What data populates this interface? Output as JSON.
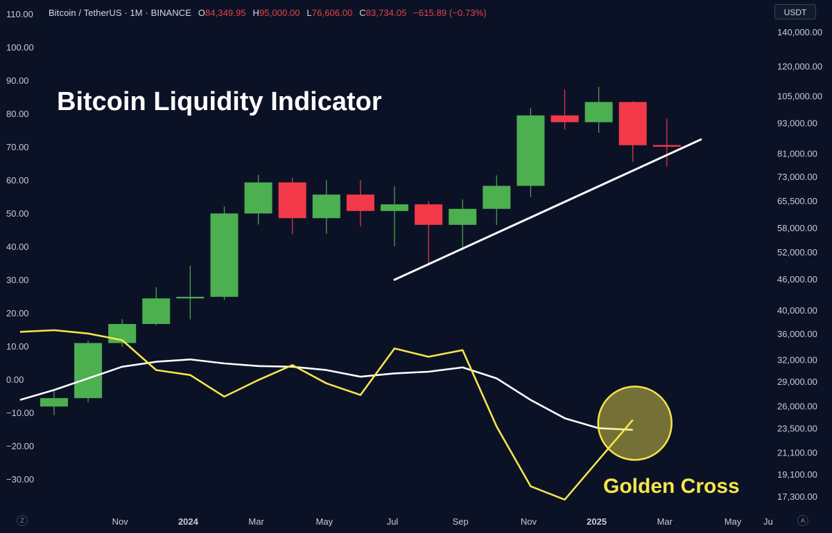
{
  "header": {
    "symbol": "Bitcoin / TetherUS · 1M · BINANCE",
    "o_label": "O",
    "o_value": "84,349.95",
    "h_label": "H",
    "h_value": "95,000.00",
    "l_label": "L",
    "l_value": "76,606.00",
    "c_label": "C",
    "c_value": "83,734.05",
    "change": "−615.89 (−0.73%)"
  },
  "currency_button": "USDT",
  "corner_left": "Z",
  "corner_right": "A",
  "colors": {
    "background": "#0c1226",
    "bullish": "#4caf50",
    "bearish": "#f2394a",
    "liquidity_line": "#f6e64b",
    "signal_line": "#ffffff",
    "trendline": "#ffffff",
    "axis_text": "#c9ccd4"
  },
  "chart_data": {
    "type": "candlestick",
    "title": "Bitcoin Liquidity Indicator",
    "annotation": "Golden Cross",
    "left_axis": {
      "ticks": [
        "110.00",
        "100.00",
        "90.00",
        "80.00",
        "70.00",
        "60.00",
        "50.00",
        "40.00",
        "30.00",
        "20.00",
        "10.00",
        "0.00",
        "−10.00",
        "−20.00",
        "−30.00"
      ],
      "range": [
        -36,
        112
      ]
    },
    "right_axis": {
      "scale": "log",
      "ticks": [
        "140,000.00",
        "120,000.00",
        "105,000.00",
        "93,000.00",
        "81,000.00",
        "73,000.00",
        "65,500.00",
        "58,000.00",
        "52,000.00",
        "46,000.00",
        "40,000.00",
        "36,000.00",
        "32,000.00",
        "29,000.00",
        "26,000.00",
        "23,500.00",
        "21,100.00",
        "19,100.00",
        "17,300.00"
      ]
    },
    "x_axis": {
      "ticks": [
        "Nov",
        "2024",
        "Mar",
        "May",
        "Jul",
        "Sep",
        "Nov",
        "2025",
        "Mar",
        "May",
        "Ju"
      ],
      "bold_ticks": [
        "2024",
        "2025"
      ]
    },
    "candles": [
      {
        "month": "2023-09",
        "open": 26000,
        "high": 28000,
        "low": 25000,
        "close": 27000
      },
      {
        "month": "2023-10",
        "open": 27000,
        "high": 35000,
        "low": 26500,
        "close": 34600
      },
      {
        "month": "2023-11",
        "open": 34600,
        "high": 38500,
        "low": 34000,
        "close": 37700
      },
      {
        "month": "2023-12",
        "open": 37700,
        "high": 44500,
        "low": 37500,
        "close": 42300
      },
      {
        "month": "2024-01",
        "open": 42300,
        "high": 49000,
        "low": 38500,
        "close": 42600
      },
      {
        "month": "2024-02",
        "open": 42600,
        "high": 64000,
        "low": 42000,
        "close": 62000
      },
      {
        "month": "2024-03",
        "open": 62000,
        "high": 73800,
        "low": 59000,
        "close": 71300
      },
      {
        "month": "2024-04",
        "open": 71300,
        "high": 72800,
        "low": 56500,
        "close": 60700
      },
      {
        "month": "2024-05",
        "open": 60700,
        "high": 72000,
        "low": 56600,
        "close": 67500
      },
      {
        "month": "2024-06",
        "open": 67500,
        "high": 72000,
        "low": 58500,
        "close": 62700
      },
      {
        "month": "2024-07",
        "open": 62700,
        "high": 70000,
        "low": 53500,
        "close": 64600
      },
      {
        "month": "2024-08",
        "open": 64600,
        "high": 65500,
        "low": 49000,
        "close": 58900
      },
      {
        "month": "2024-09",
        "open": 58900,
        "high": 66000,
        "low": 52500,
        "close": 63300
      },
      {
        "month": "2024-10",
        "open": 63300,
        "high": 73600,
        "low": 58900,
        "close": 70200
      },
      {
        "month": "2024-11",
        "open": 70200,
        "high": 99600,
        "low": 66800,
        "close": 96400
      },
      {
        "month": "2024-12",
        "open": 96400,
        "high": 108300,
        "low": 90500,
        "close": 93500
      },
      {
        "month": "2025-01",
        "open": 93500,
        "high": 109600,
        "low": 89200,
        "close": 102400
      },
      {
        "month": "2025-02",
        "open": 102400,
        "high": 102700,
        "low": 78300,
        "close": 84300
      },
      {
        "month": "2025-03",
        "open": 84350,
        "high": 95000,
        "low": 76606,
        "close": 83734
      }
    ],
    "series": [
      {
        "values": [
          {
            "month": "2023-08",
            "y": 14.5
          },
          {
            "month": "2023-09",
            "y": 15
          },
          {
            "month": "2023-10",
            "y": 14
          },
          {
            "month": "2023-11",
            "y": 12
          },
          {
            "month": "2023-12",
            "y": 3
          },
          {
            "month": "2024-01",
            "y": 1.5
          },
          {
            "month": "2024-02",
            "y": -5
          },
          {
            "month": "2024-03",
            "y": 0
          },
          {
            "month": "2024-04",
            "y": 4.5
          },
          {
            "month": "2024-05",
            "y": -1
          },
          {
            "month": "2024-06",
            "y": -4.5
          },
          {
            "month": "2024-07",
            "y": 9.5
          },
          {
            "month": "2024-08",
            "y": 7
          },
          {
            "month": "2024-09",
            "y": 9
          },
          {
            "month": "2024-10",
            "y": -14
          },
          {
            "month": "2024-11",
            "y": -32
          },
          {
            "month": "2024-12",
            "y": -36
          },
          {
            "month": "2025-01",
            "y": -24
          },
          {
            "month": "2025-02",
            "y": -12
          }
        ]
      },
      {
        "values": [
          {
            "month": "2023-08",
            "y": -6
          },
          {
            "month": "2023-09",
            "y": -3
          },
          {
            "month": "2023-10",
            "y": 0.5
          },
          {
            "month": "2023-11",
            "y": 4
          },
          {
            "month": "2023-12",
            "y": 5.5
          },
          {
            "month": "2024-01",
            "y": 6.2
          },
          {
            "month": "2024-02",
            "y": 5
          },
          {
            "month": "2024-03",
            "y": 4.2
          },
          {
            "month": "2024-04",
            "y": 4
          },
          {
            "month": "2024-05",
            "y": 3
          },
          {
            "month": "2024-06",
            "y": 1
          },
          {
            "month": "2024-07",
            "y": 2
          },
          {
            "month": "2024-08",
            "y": 2.5
          },
          {
            "month": "2024-09",
            "y": 3.8
          },
          {
            "month": "2024-10",
            "y": 0.5
          },
          {
            "month": "2024-11",
            "y": -6
          },
          {
            "month": "2024-12",
            "y": -11.5
          },
          {
            "month": "2025-01",
            "y": -14.5
          },
          {
            "month": "2025-02",
            "y": -15
          }
        ]
      }
    ],
    "trendline": {
      "from": {
        "month": "2024-07",
        "price": 46000
      },
      "to": {
        "month": "2025-04",
        "price": 86500
      }
    },
    "golden_cross_marker": {
      "month": "2025-02",
      "y": -13
    }
  }
}
